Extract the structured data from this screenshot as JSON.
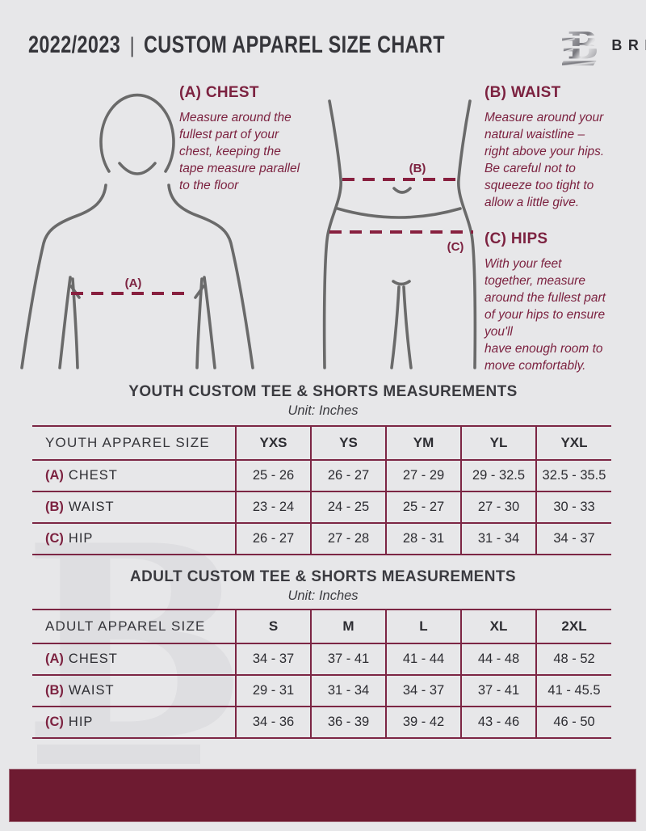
{
  "colors": {
    "background": "#e7e7e9",
    "text_dark": "#36363b",
    "accent": "#7c2240",
    "table_border": "#7c2644",
    "dash": "#88203f",
    "footer_bar": "#6e1b31",
    "watermark": "#dedee1",
    "figure_stroke": "#6a6a6a"
  },
  "header": {
    "season": "2022/2023",
    "separator": "|",
    "title": "CUSTOM APPAREL SIZE CHART",
    "brand": "BREAKAWAY"
  },
  "guides": {
    "chest": {
      "marker": "(A)",
      "heading": "(A) CHEST",
      "text": "Measure around the\nfullest part of your\nchest, keeping the\ntape measure parallel\nto the floor"
    },
    "waist": {
      "marker": "(B)",
      "heading": "(B) WAIST",
      "text": "Measure around your\nnatural waistline –\nright above your hips.\nBe careful not to\nsqueeze too tight to\nallow a little give."
    },
    "hips": {
      "marker": "(C)",
      "heading": "(C) HIPS",
      "text": "With your feet\ntogether, measure\naround the fullest part\nof your hips to ensure\nyou'll\nhave enough room to\nmove comfortably."
    }
  },
  "youth_table": {
    "title": "YOUTH CUSTOM TEE & SHORTS MEASUREMENTS",
    "unit": "Unit: Inches",
    "header": [
      "YOUTH APPAREL SIZE",
      "YXS",
      "YS",
      "YM",
      "YL",
      "YXL"
    ],
    "rows": [
      {
        "key": "(A)",
        "label": "CHEST",
        "values": [
          "25 - 26",
          "26 - 27",
          "27 - 29",
          "29 - 32.5",
          "32.5 - 35.5"
        ]
      },
      {
        "key": "(B)",
        "label": "WAIST",
        "values": [
          "23 - 24",
          "24 - 25",
          "25 - 27",
          "27 - 30",
          "30 - 33"
        ]
      },
      {
        "key": "(C)",
        "label": "HIP",
        "values": [
          "26 - 27",
          "27 - 28",
          "28 - 31",
          "31 - 34",
          "34 - 37"
        ]
      }
    ]
  },
  "adult_table": {
    "title": "ADULT CUSTOM TEE & SHORTS MEASUREMENTS",
    "unit": "Unit: Inches",
    "header": [
      "ADULT APPAREL SIZE",
      "S",
      "M",
      "L",
      "XL",
      "2XL"
    ],
    "rows": [
      {
        "key": "(A)",
        "label": "CHEST",
        "values": [
          "34 - 37",
          "37 - 41",
          "41 - 44",
          "44 - 48",
          "48 - 52"
        ]
      },
      {
        "key": "(B)",
        "label": "WAIST",
        "values": [
          "29 - 31",
          "31 - 34",
          "34 - 37",
          "37 - 41",
          "41 - 45.5"
        ]
      },
      {
        "key": "(C)",
        "label": "HIP",
        "values": [
          "34 - 36",
          "36 - 39",
          "39 - 42",
          "43 - 46",
          "46 - 50"
        ]
      }
    ]
  },
  "watermark_letter": "B"
}
